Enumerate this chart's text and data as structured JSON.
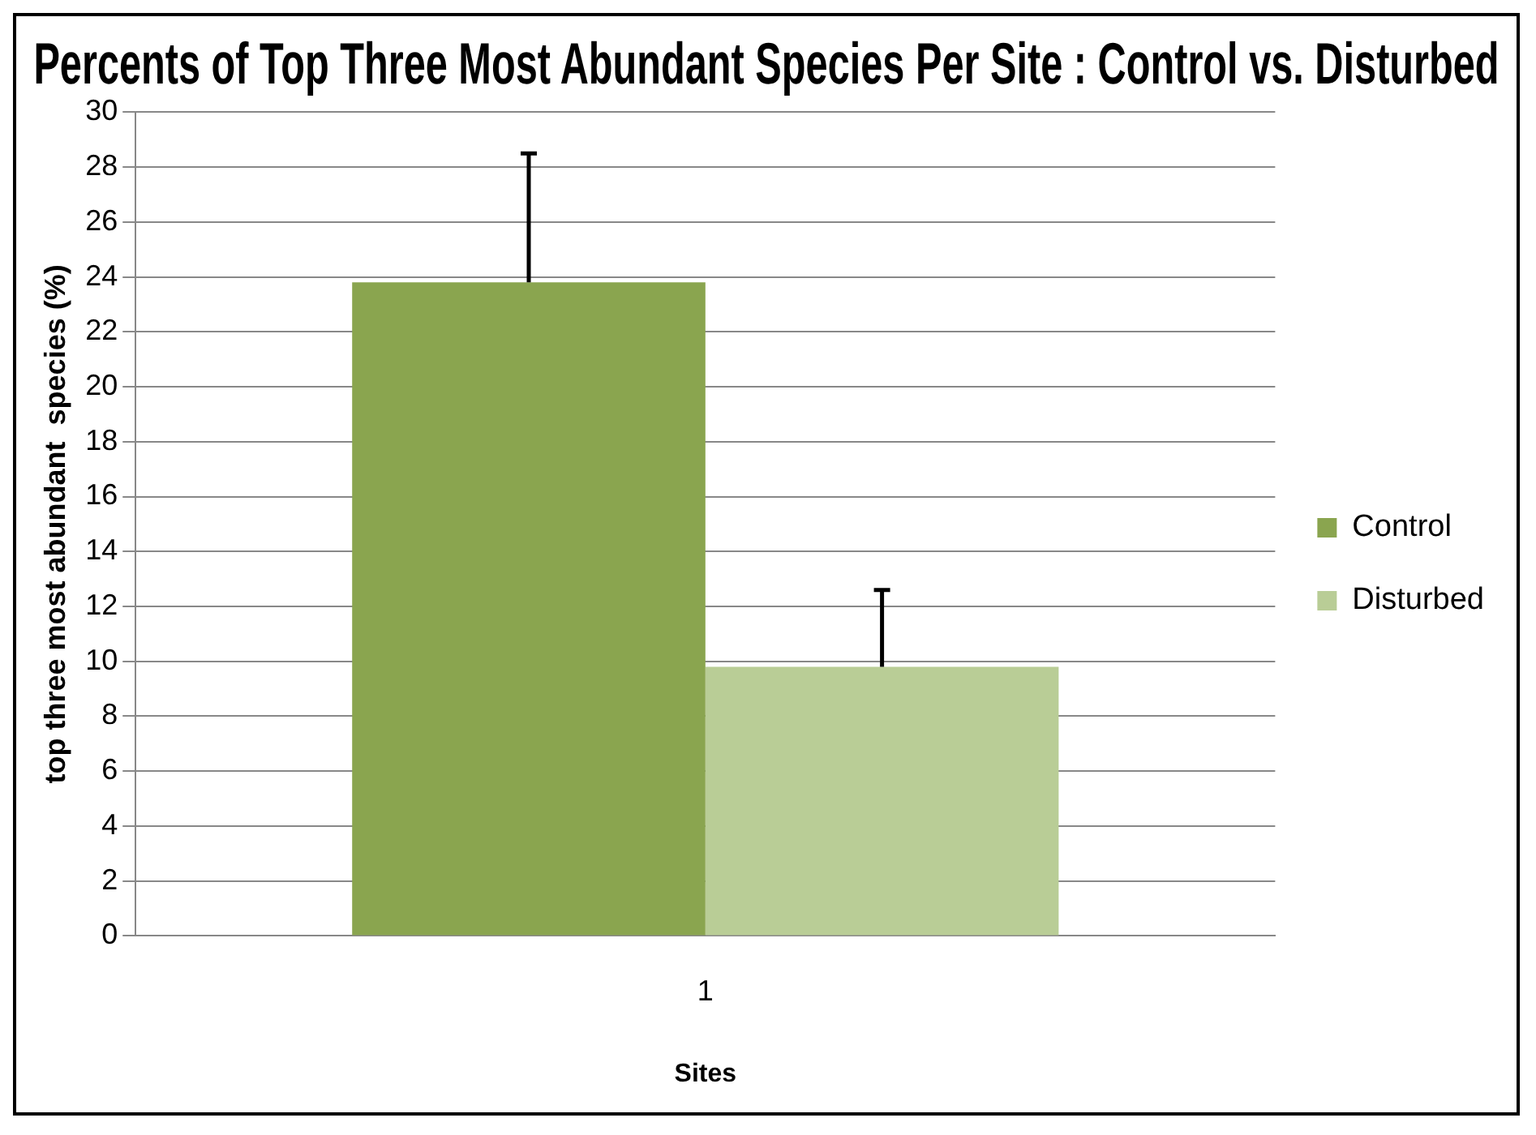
{
  "chart_data": {
    "type": "bar",
    "title": "Percents of Top Three Most Abundant Species Per Site : Control vs. Disturbed",
    "xlabel": "Sites",
    "ylabel": "top three most abundant  species (%)",
    "categories": [
      "1"
    ],
    "series": [
      {
        "name": "Control",
        "color": "#8aa54f",
        "values": [
          23.8
        ],
        "errors": [
          [
            23.8,
            28.5
          ]
        ]
      },
      {
        "name": "Disturbed",
        "color": "#b9cd96",
        "values": [
          9.8
        ],
        "errors": [
          [
            9.8,
            12.6
          ]
        ]
      }
    ],
    "ylim": [
      0,
      30
    ],
    "yticks": [
      0,
      2,
      4,
      6,
      8,
      10,
      12,
      14,
      16,
      18,
      20,
      22,
      24,
      26,
      28,
      30
    ],
    "grid": "y",
    "legend": "right"
  }
}
